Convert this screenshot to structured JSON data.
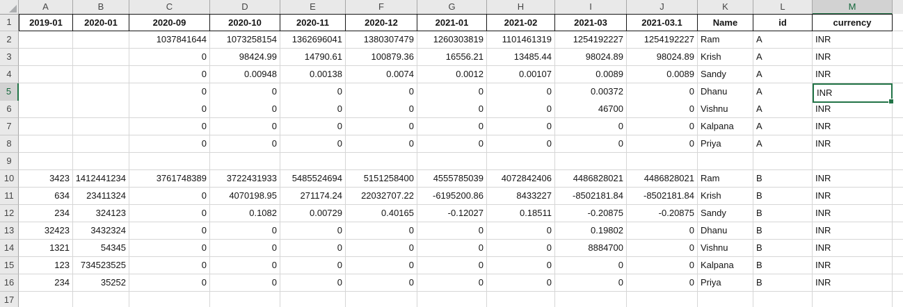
{
  "sheet": {
    "column_letters": [
      "A",
      "B",
      "C",
      "D",
      "E",
      "F",
      "G",
      "H",
      "I",
      "J",
      "K",
      "L",
      "M"
    ],
    "row_numbers": [
      1,
      2,
      3,
      4,
      5,
      6,
      7,
      8,
      9,
      10,
      11,
      12,
      13,
      14,
      15,
      16,
      17
    ],
    "selected": {
      "cell": "M5",
      "column": "M",
      "row": 5
    },
    "colors": {
      "accent_green": "#217346",
      "header_fill": "#e9e9e9",
      "selected_header_fill": "#d2d2d2",
      "gridline": "#d6d6d6"
    },
    "grid_rows": [
      [
        "2019-01",
        "2020-01",
        "2020-09",
        "2020-10",
        "2020-11",
        "2020-12",
        "2021-01",
        "2021-02",
        "2021-03",
        "2021-03.1",
        "Name",
        "id",
        "currency"
      ],
      [
        "",
        "",
        "1037841644",
        "1073258154",
        "1362696041",
        "1380307479",
        "1260303819",
        "1101461319",
        "1254192227",
        "1254192227",
        "Ram",
        "A",
        "INR"
      ],
      [
        "",
        "",
        "0",
        "98424.99",
        "14790.61",
        "100879.36",
        "16556.21",
        "13485.44",
        "98024.89",
        "98024.89",
        "Krish",
        "A",
        "INR"
      ],
      [
        "",
        "",
        "0",
        "0.00948",
        "0.00138",
        "0.0074",
        "0.0012",
        "0.00107",
        "0.0089",
        "0.0089",
        "Sandy",
        "A",
        "INR"
      ],
      [
        "",
        "",
        "0",
        "0",
        "0",
        "0",
        "0",
        "0",
        "0.00372",
        "0",
        "Dhanu",
        "A",
        "INR"
      ],
      [
        "",
        "",
        "0",
        "0",
        "0",
        "0",
        "0",
        "0",
        "46700",
        "0",
        "Vishnu",
        "A",
        "INR"
      ],
      [
        "",
        "",
        "0",
        "0",
        "0",
        "0",
        "0",
        "0",
        "0",
        "0",
        "Kalpana",
        "A",
        "INR"
      ],
      [
        "",
        "",
        "0",
        "0",
        "0",
        "0",
        "0",
        "0",
        "0",
        "0",
        "Priya",
        "A",
        "INR"
      ],
      [
        "",
        "",
        "",
        "",
        "",
        "",
        "",
        "",
        "",
        "",
        "",
        "",
        ""
      ],
      [
        "3423",
        "1412441234",
        "3761748389",
        "3722431933",
        "5485524694",
        "5151258400",
        "4555785039",
        "4072842406",
        "4486828021",
        "4486828021",
        "Ram",
        "B",
        "INR"
      ],
      [
        "634",
        "23411324",
        "0",
        "4070198.95",
        "271174.24",
        "22032707.22",
        "-6195200.86",
        "8433227",
        "-8502181.84",
        "-8502181.84",
        "Krish",
        "B",
        "INR"
      ],
      [
        "234",
        "324123",
        "0",
        "0.1082",
        "0.00729",
        "0.40165",
        "-0.12027",
        "0.18511",
        "-0.20875",
        "-0.20875",
        "Sandy",
        "B",
        "INR"
      ],
      [
        "32423",
        "3432324",
        "0",
        "0",
        "0",
        "0",
        "0",
        "0",
        "0.19802",
        "0",
        "Dhanu",
        "B",
        "INR"
      ],
      [
        "1321",
        "54345",
        "0",
        "0",
        "0",
        "0",
        "0",
        "0",
        "8884700",
        "0",
        "Vishnu",
        "B",
        "INR"
      ],
      [
        "123",
        "734523525",
        "0",
        "0",
        "0",
        "0",
        "0",
        "0",
        "0",
        "0",
        "Kalpana",
        "B",
        "INR"
      ],
      [
        "234",
        "35252",
        "0",
        "0",
        "0",
        "0",
        "0",
        "0",
        "0",
        "0",
        "Priya",
        "B",
        "INR"
      ],
      [
        "",
        "",
        "",
        "",
        "",
        "",
        "",
        "",
        "",
        "",
        "",
        "",
        ""
      ]
    ]
  }
}
